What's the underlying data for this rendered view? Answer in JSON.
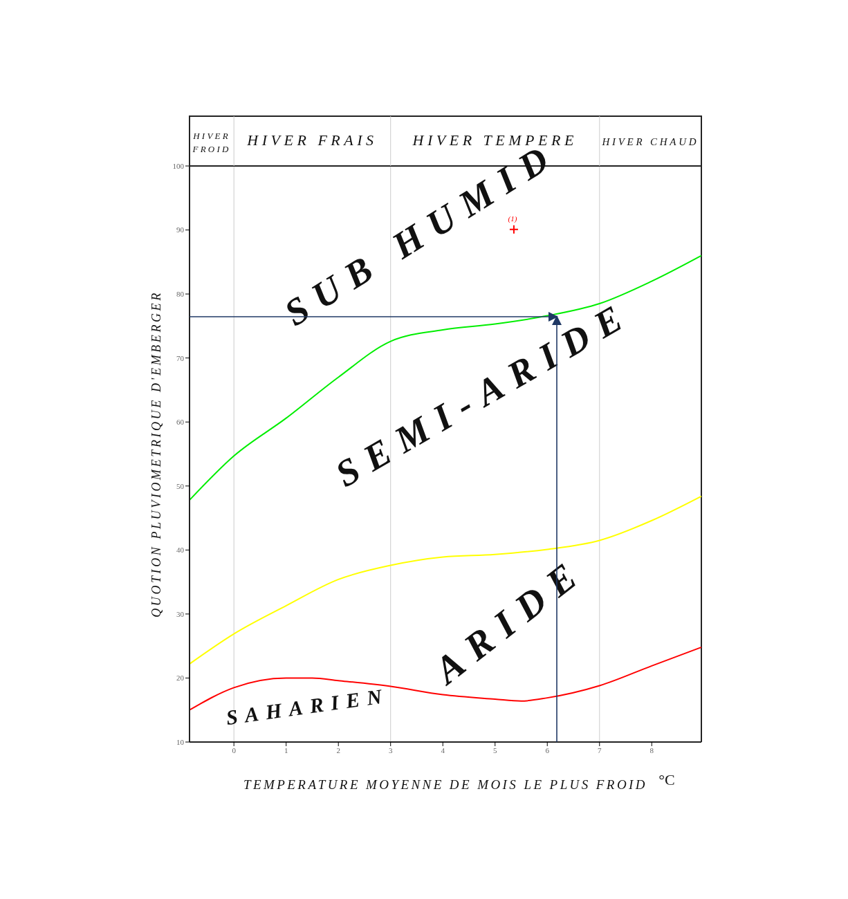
{
  "chart_data": {
    "type": "line",
    "xlabel": "TEMPERATURE MOYENNE DE MOIS LE PLUS FROID",
    "ylabel": "QUOTION PLUVIOMETRIQUE D'EMBERGER",
    "xlim": [
      -0.85,
      8.95
    ],
    "xticks": [
      0,
      1,
      2,
      3,
      4,
      5,
      6,
      7,
      8
    ],
    "ylim": [
      10,
      100
    ],
    "yticks": [
      10,
      20,
      30,
      40,
      50,
      60,
      70,
      80,
      90,
      100
    ],
    "marker": "none",
    "series": [
      {
        "color": "#00ee00",
        "x": [
          -0.85,
          0,
          1,
          2,
          3,
          4,
          5,
          6,
          7,
          8,
          8.95
        ],
        "values": [
          47.8,
          54.7,
          60.6,
          67,
          72.6,
          74.4,
          75.3,
          76.6,
          78.5,
          82,
          86
        ]
      },
      {
        "color": "#ffff00",
        "x": [
          -0.85,
          0,
          1,
          2,
          3,
          4,
          5,
          6,
          7,
          8,
          8.95
        ],
        "values": [
          22.2,
          26.9,
          31.3,
          35.4,
          37.6,
          38.9,
          39.3,
          40.1,
          41.5,
          44.6,
          48.4
        ]
      },
      {
        "color": "#ff0000",
        "x": [
          -0.85,
          0,
          1,
          1.5,
          2,
          3,
          4,
          5,
          5.5,
          6,
          7,
          8,
          8.95
        ],
        "values": [
          15,
          18.5,
          20,
          20,
          19.6,
          18.7,
          17.4,
          16.7,
          16.4,
          16.9,
          18.8,
          21.9,
          24.8
        ]
      },
      {
        "type": "scatter",
        "marker": "cross",
        "color": "#ff0000",
        "x": [
          5.36
        ],
        "values": [
          90.1
        ]
      }
    ],
    "ref_lines": [
      {
        "axis": "x",
        "value": 0,
        "color": "#cccccc"
      },
      {
        "axis": "x",
        "value": 3,
        "color": "#cccccc"
      },
      {
        "axis": "x",
        "value": 7,
        "color": "#cccccc"
      }
    ],
    "annotations": [
      "HIVER FROID",
      "HIVER FRAIS",
      "HIVER TEMPERE",
      "HIVER CHAUD",
      "SUB HUMID",
      "SEMI-ARIDE",
      "ARIDE",
      "SAHARIEN",
      {
        "text": "(1)",
        "x": 5.36,
        "y": 90.1
      },
      "°C"
    ]
  }
}
